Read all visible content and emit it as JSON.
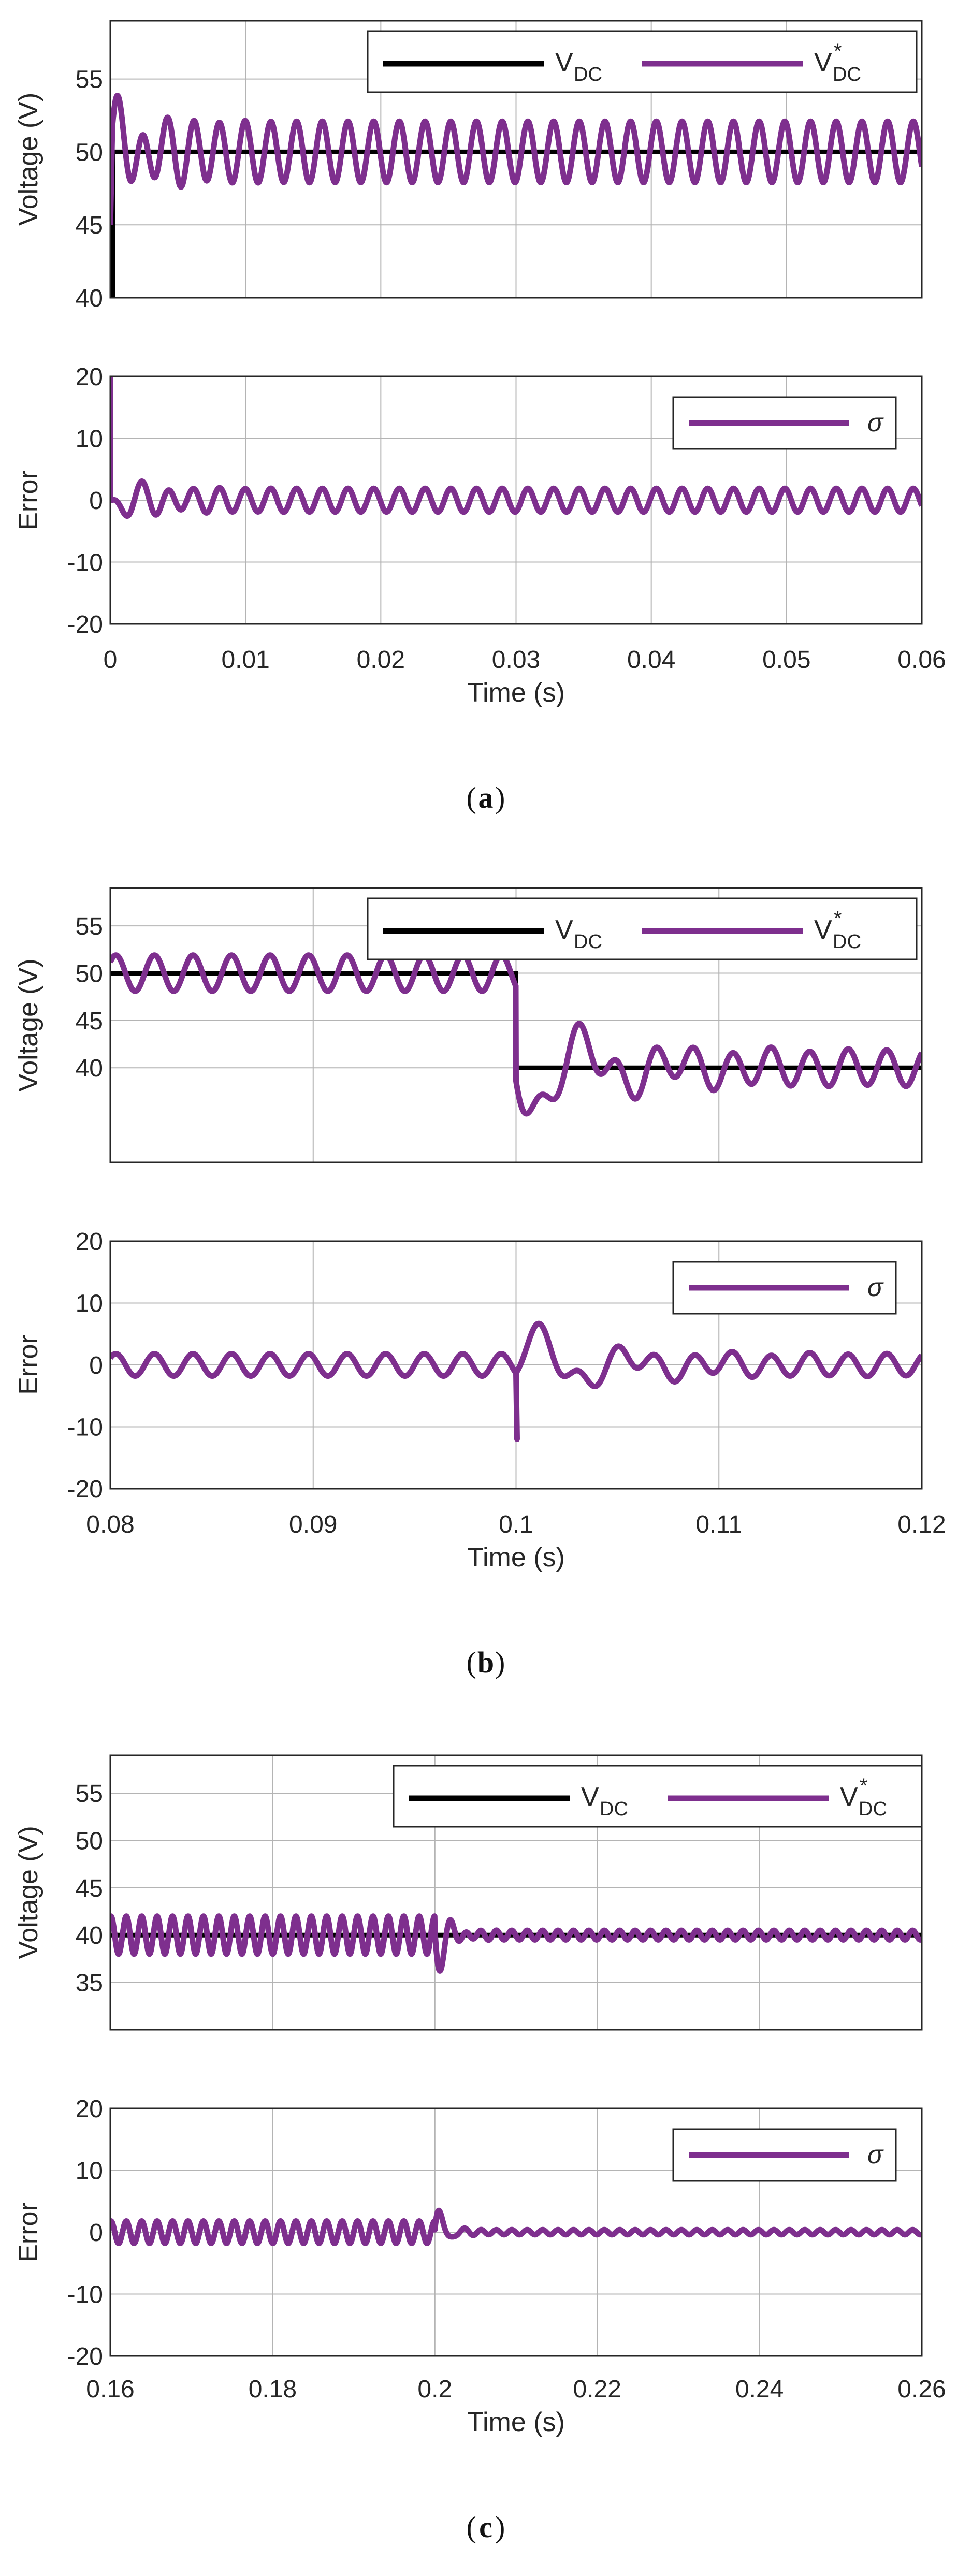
{
  "colors": {
    "reference": "#000000",
    "measured": "#7E2F8E",
    "grid": "#b4b4b4",
    "axis": "#262626"
  },
  "legend_labels": {
    "reference_main": "V",
    "reference_sub": "DC",
    "measured_main": "V",
    "measured_sub": "DC",
    "measured_sup": "*",
    "error": "σ"
  },
  "chart_data": [
    {
      "type": "line",
      "panel": "a",
      "caption": "a",
      "xlabel": "Time (s)",
      "xlim": [
        0,
        0.06
      ],
      "xticks": [
        0,
        0.01,
        0.02,
        0.03,
        0.04,
        0.05,
        0.06
      ],
      "xtick_labels": [
        "0",
        "0.01",
        "0.02",
        "0.03",
        "0.04",
        "0.05",
        "0.06"
      ],
      "voltage": {
        "ylabel": "Voltage (V)",
        "ylim": [
          40,
          59
        ],
        "yticks": [
          40,
          45,
          50,
          55
        ],
        "ytick_labels": [
          "40",
          "45",
          "50",
          "55"
        ],
        "legend_position": "top-right",
        "series": [
          {
            "name": "V_DC",
            "role": "reference",
            "steps": [
              [
                0,
                40
              ],
              [
                0.0002,
                50
              ]
            ]
          },
          {
            "name": "V*_DC",
            "role": "measured",
            "start": 45,
            "center": 50,
            "amplitude": 2.1,
            "period": 0.0019,
            "transients": [
              {
                "t0": 0,
                "amp": 2.5,
                "tau": 0.0025
              }
            ]
          }
        ]
      },
      "error": {
        "ylabel": "Error",
        "ylim": [
          -20,
          20
        ],
        "yticks": [
          -20,
          -10,
          0,
          10,
          20
        ],
        "ytick_labels": [
          "-20",
          "-10",
          "0",
          "10",
          "20"
        ],
        "legend_position": "top-right",
        "series": [
          {
            "name": "σ",
            "role": "measured",
            "center": 0,
            "amplitude": 1.9,
            "period": 0.0019,
            "spike": {
              "t": 0,
              "value": 20
            },
            "transients": [
              {
                "t0": 0,
                "amp": -3,
                "tau": 0.0025
              }
            ]
          }
        ]
      }
    },
    {
      "type": "line",
      "panel": "b",
      "caption": "b",
      "xlabel": "Time (s)",
      "xlim": [
        0.08,
        0.12
      ],
      "xticks": [
        0.08,
        0.09,
        0.1,
        0.11,
        0.12
      ],
      "xtick_labels": [
        "0.08",
        "0.09",
        "0.1",
        "0.11",
        "0.12"
      ],
      "voltage": {
        "ylabel": "Voltage (V)",
        "ylim": [
          30,
          59
        ],
        "yticks": [
          40,
          45,
          50,
          55
        ],
        "ytick_labels": [
          "40",
          "45",
          "50",
          "55"
        ],
        "legend_position": "top-right",
        "series": [
          {
            "name": "V_DC",
            "role": "reference",
            "steps": [
              [
                0.08,
                50
              ],
              [
                0.1,
                40
              ]
            ]
          },
          {
            "name": "V*_DC",
            "role": "measured",
            "center": 50,
            "amplitude": 1.9,
            "period": 0.0019,
            "step": {
              "t": 0.1,
              "center": 40
            },
            "transients": [
              {
                "t0": 0.1,
                "amp": -6.5,
                "tau": 0.004,
                "period": 0.0045
              }
            ]
          }
        ]
      },
      "error": {
        "ylabel": "Error",
        "ylim": [
          -20,
          20
        ],
        "yticks": [
          -20,
          -10,
          0,
          10,
          20
        ],
        "ytick_labels": [
          "-20",
          "-10",
          "0",
          "10",
          "20"
        ],
        "legend_position": "top-right",
        "series": [
          {
            "name": "σ",
            "role": "measured",
            "center": 0,
            "amplitude": 1.8,
            "period": 0.0019,
            "transients": [
              {
                "t0": 0.1,
                "amp": 6.5,
                "tau": 0.004,
                "period": 0.0045
              }
            ],
            "spike": {
              "t": 0.1,
              "value": -12
            }
          }
        ]
      }
    },
    {
      "type": "line",
      "panel": "c",
      "caption": "c",
      "xlabel": "Time (s)",
      "xlim": [
        0.16,
        0.26
      ],
      "xticks": [
        0.16,
        0.18,
        0.2,
        0.22,
        0.24,
        0.26
      ],
      "xtick_labels": [
        "0.16",
        "0.18",
        "0.2",
        "0.22",
        "0.24",
        "0.26"
      ],
      "voltage": {
        "ylabel": "Voltage (V)",
        "ylim": [
          30,
          59
        ],
        "yticks": [
          35,
          40,
          45,
          50,
          55
        ],
        "ytick_labels": [
          "35",
          "40",
          "45",
          "50",
          "55"
        ],
        "legend_position": "top-right",
        "series": [
          {
            "name": "V_DC",
            "role": "reference",
            "steps": [
              [
                0.16,
                40
              ]
            ]
          },
          {
            "name": "V*_DC",
            "role": "measured",
            "center": 40,
            "amplitude": 2.0,
            "period": 0.0019,
            "step": {
              "t": 0.2,
              "amplitude": 0.5
            },
            "transients": [
              {
                "t0": 0.2,
                "amp": -6,
                "tau": 0.0012,
                "period": 0.0028
              }
            ]
          }
        ]
      },
      "error": {
        "ylabel": "Error",
        "ylim": [
          -20,
          20
        ],
        "yticks": [
          -20,
          -10,
          0,
          10,
          20
        ],
        "ytick_labels": [
          "-20",
          "-10",
          "0",
          "10",
          "20"
        ],
        "legend_position": "top-right",
        "series": [
          {
            "name": "σ",
            "role": "measured",
            "center": 0,
            "amplitude": 1.8,
            "period": 0.0019,
            "step": {
              "t": 0.2,
              "amplitude": 0.4
            },
            "transients": [
              {
                "t0": 0.2,
                "amp": 6,
                "tau": 0.0012,
                "period": 0.0028
              }
            ]
          }
        ]
      }
    }
  ]
}
